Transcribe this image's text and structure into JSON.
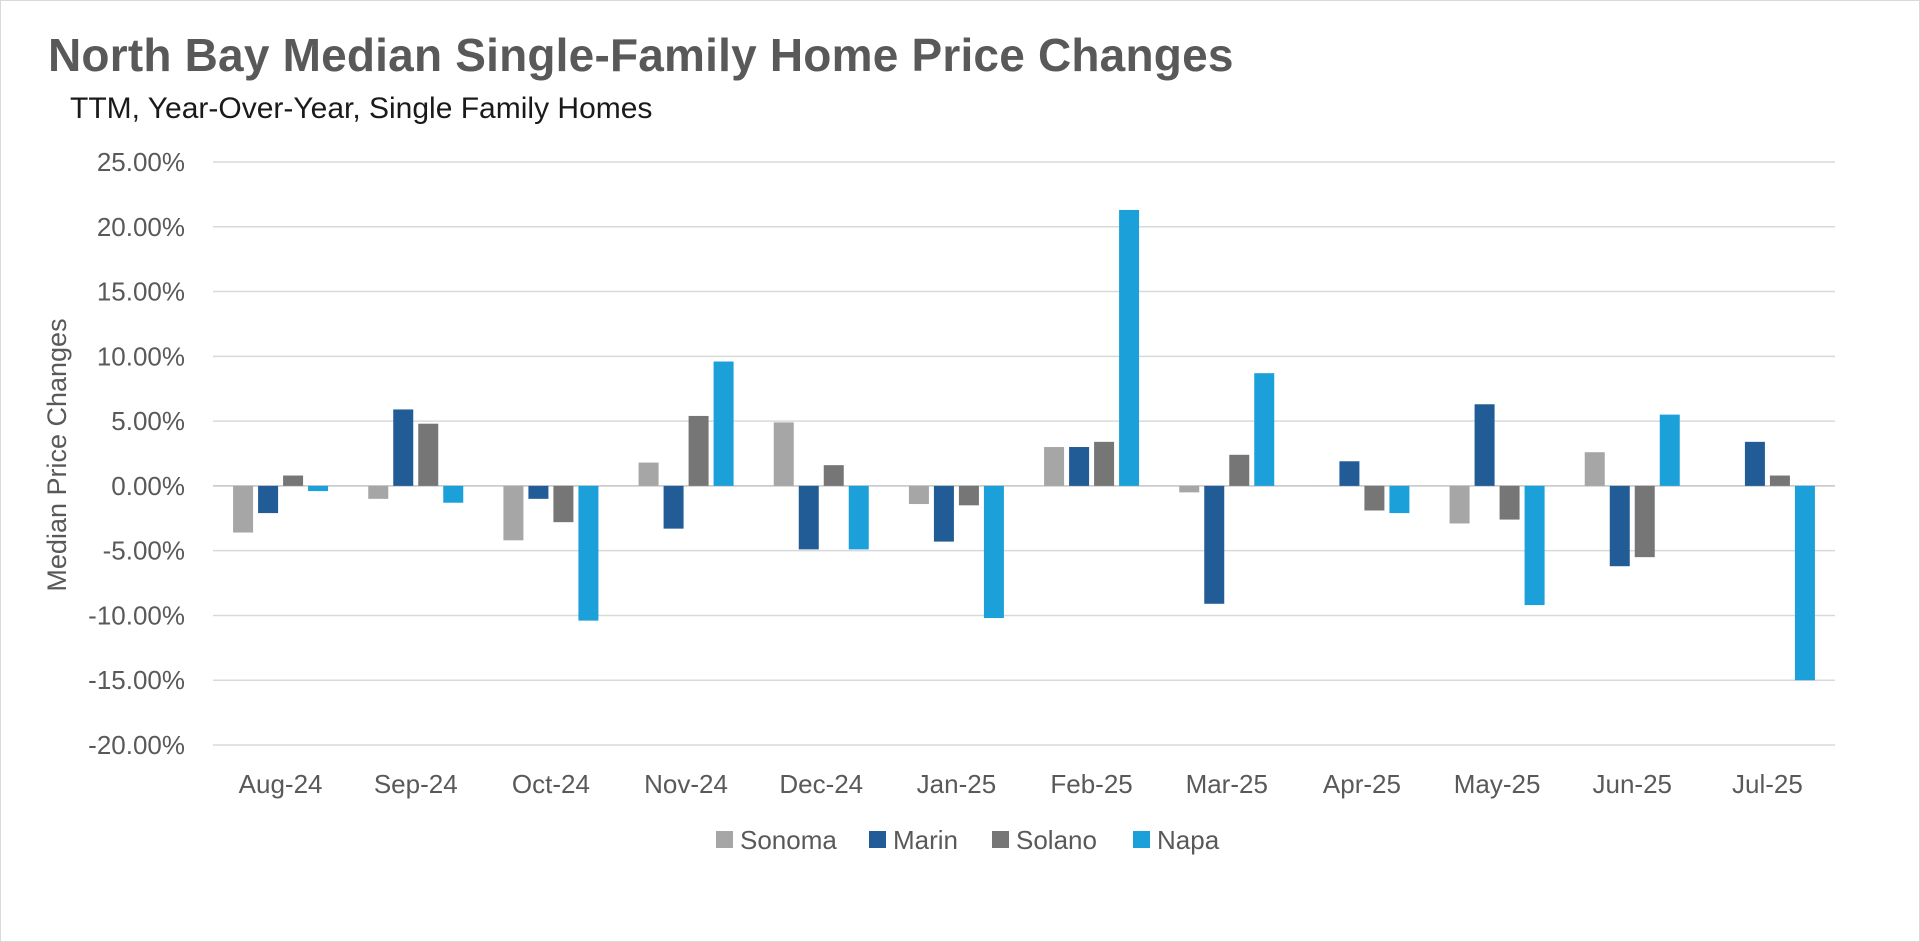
{
  "title": "North Bay Median Single-Family Home Price Changes",
  "subtitle": "TTM, Year-Over-Year, Single Family Homes",
  "chart_data": {
    "type": "bar",
    "title": "North Bay Median Single-Family Home Price Changes",
    "subtitle": "TTM, Year-Over-Year, Single Family Homes",
    "xlabel": "",
    "ylabel": "Median Price Changes",
    "ylim": [
      -20,
      25
    ],
    "ytick_step": 5,
    "ytick_labels": [
      "25.00%",
      "20.00%",
      "15.00%",
      "10.00%",
      "5.00%",
      "0.00%",
      "-5.00%",
      "-10.00%",
      "-15.00%",
      "-20.00%"
    ],
    "grid": true,
    "legend_position": "bottom",
    "categories": [
      "Aug-24",
      "Sep-24",
      "Oct-24",
      "Nov-24",
      "Dec-24",
      "Jan-25",
      "Feb-25",
      "Mar-25",
      "Apr-25",
      "May-25",
      "Jun-25",
      "Jul-25"
    ],
    "series": [
      {
        "name": "Sonoma",
        "color": "#a6a6a6",
        "values": [
          -3.6,
          -1.0,
          -4.2,
          1.8,
          4.9,
          -1.4,
          3.0,
          -0.5,
          0.0,
          -2.9,
          2.6,
          0.0
        ]
      },
      {
        "name": "Marin",
        "color": "#225c96",
        "values": [
          -2.1,
          5.9,
          -1.0,
          -3.3,
          -4.9,
          -4.3,
          3.0,
          -9.1,
          1.9,
          6.3,
          -6.2,
          3.4
        ]
      },
      {
        "name": "Solano",
        "color": "#767676",
        "values": [
          0.8,
          4.8,
          -2.8,
          5.4,
          1.6,
          -1.5,
          3.4,
          2.4,
          -1.9,
          -2.6,
          -5.5,
          0.8
        ]
      },
      {
        "name": "Napa",
        "color": "#1ba0d9",
        "values": [
          -0.4,
          -1.3,
          -10.4,
          9.6,
          -4.9,
          -10.2,
          21.3,
          8.7,
          -2.1,
          -9.2,
          5.5,
          -15.0
        ]
      }
    ]
  }
}
